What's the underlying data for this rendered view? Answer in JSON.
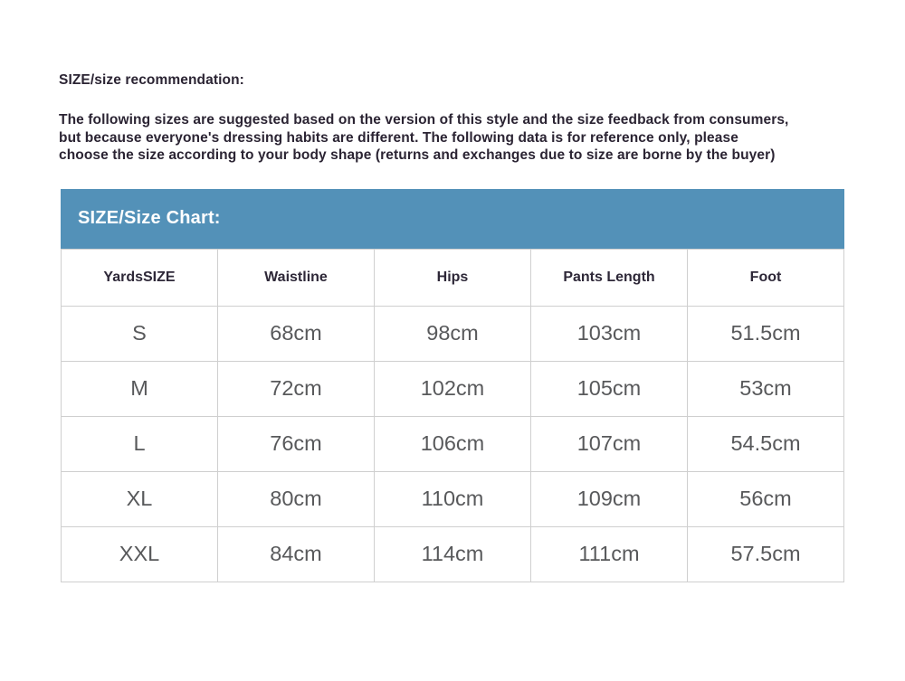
{
  "recommendation": {
    "title": "SIZE/size recommendation:",
    "body_lines": [
      "The following sizes are suggested based on the version of this style and the size feedback from consumers,",
      "but because everyone's dressing habits are different. The following data is for reference only, please",
      "choose the size according to your body shape (returns and exchanges due to size are borne by the buyer)"
    ]
  },
  "size_chart": {
    "title": "SIZE/Size Chart:",
    "columns": [
      "YardsSIZE",
      "Waistline",
      "Hips",
      "Pants Length",
      "Foot"
    ],
    "rows": [
      [
        "S",
        "68cm",
        "98cm",
        "103cm",
        "51.5cm"
      ],
      [
        "M",
        "72cm",
        "102cm",
        "105cm",
        "53cm"
      ],
      [
        "L",
        "76cm",
        "106cm",
        "107cm",
        "54.5cm"
      ],
      [
        "XL",
        "80cm",
        "110cm",
        "109cm",
        "56cm"
      ],
      [
        "XXL",
        "84cm",
        "114cm",
        "111cm",
        "57.5cm"
      ]
    ]
  },
  "colors": {
    "table_title_bar_bg": "#5391b8",
    "table_title_bar_text": "#ffffff",
    "bold_paragraph_text": "#2b2433",
    "table_header_text": "#2e2838",
    "table_cell_text": "#58595b",
    "table_border": "#cfcfcf",
    "page_background": "#ffffff"
  }
}
